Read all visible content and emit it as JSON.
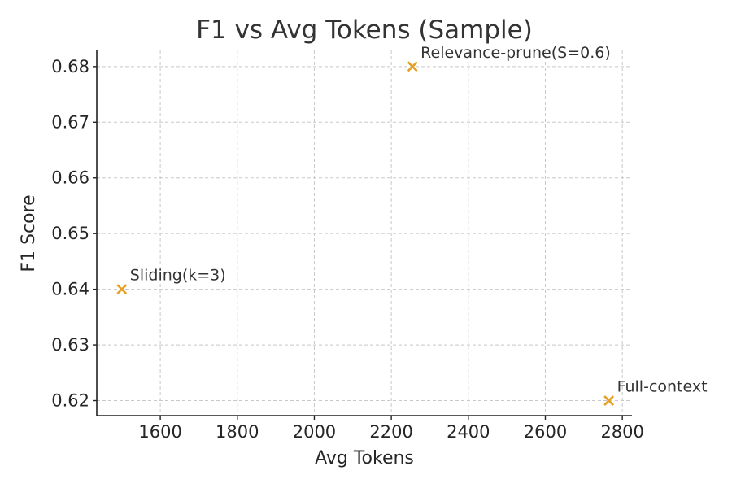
{
  "chart_data": {
    "type": "scatter",
    "title": "F1 vs Avg Tokens (Sample)",
    "xlabel": "Avg Tokens",
    "ylabel": "F1 Score",
    "xlim": [
      1435,
      2825
    ],
    "ylim": [
      0.6173,
      0.6829
    ],
    "x_ticks": [
      1600,
      1800,
      2000,
      2200,
      2400,
      2600,
      2800
    ],
    "y_ticks": [
      0.62,
      0.63,
      0.64,
      0.65,
      0.66,
      0.67,
      0.68
    ],
    "grid": true,
    "marker": "x",
    "marker_color": "#E6A020",
    "points": [
      {
        "label": "Sliding(k=3)",
        "x": 1500,
        "y": 0.64
      },
      {
        "label": "Relevance-prune(S=0.6)",
        "x": 2255,
        "y": 0.68
      },
      {
        "label": "Full-context",
        "x": 2765,
        "y": 0.62
      }
    ]
  }
}
